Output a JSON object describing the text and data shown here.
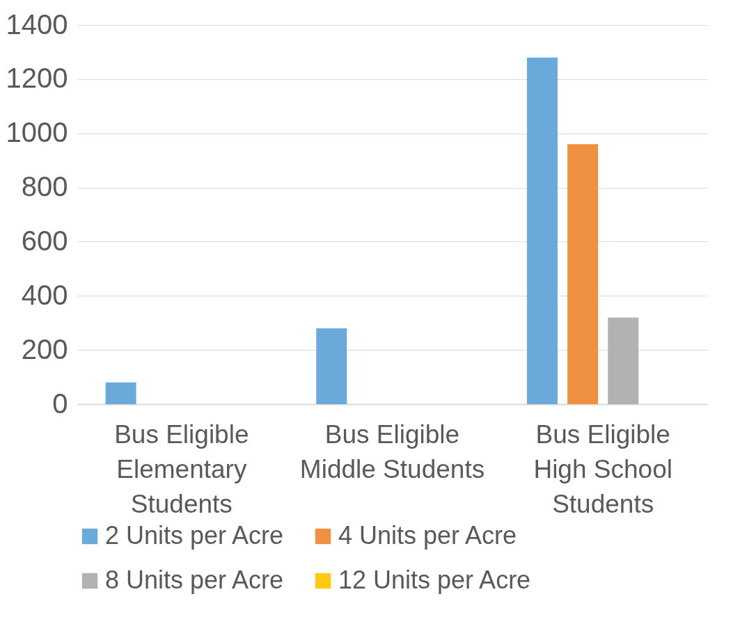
{
  "chart_data": {
    "type": "bar",
    "categories": [
      "Bus Eligible Elementary Students",
      "Bus Eligible Middle Students",
      "Bus Eligible High School Students"
    ],
    "series": [
      {
        "name": "2 Units per Acre",
        "color": "#6aaadb",
        "values": [
          80,
          280,
          1280
        ]
      },
      {
        "name": "4 Units per Acre",
        "color": "#f09142",
        "values": [
          0,
          0,
          960
        ]
      },
      {
        "name": "8 Units per Acre",
        "color": "#b2b2b2",
        "values": [
          0,
          0,
          320
        ]
      },
      {
        "name": "12 Units per Acre",
        "color": "#ffc90e",
        "values": [
          0,
          0,
          0
        ]
      }
    ],
    "ylim": [
      0,
      1400
    ],
    "yticks": [
      0,
      200,
      400,
      600,
      800,
      1000,
      1200,
      1400
    ],
    "grid": "y",
    "legend": "bottom"
  }
}
